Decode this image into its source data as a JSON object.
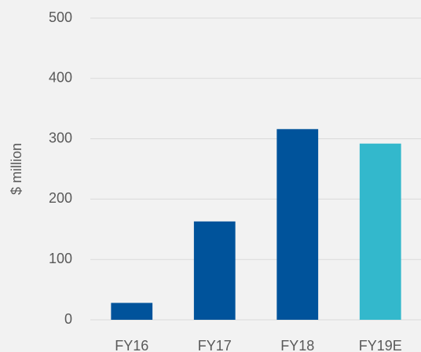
{
  "chart_data": {
    "type": "bar",
    "y_label": "$ million",
    "categories": [
      "FY16",
      "FY17",
      "FY18",
      "FY19E"
    ],
    "values": [
      28,
      163,
      316,
      292
    ],
    "colors": [
      "#00539b",
      "#00539b",
      "#00539b",
      "#33b8cc"
    ],
    "ylim": [
      0,
      500
    ],
    "yticks": [
      0,
      100,
      200,
      300,
      400,
      500
    ],
    "grid": true
  }
}
